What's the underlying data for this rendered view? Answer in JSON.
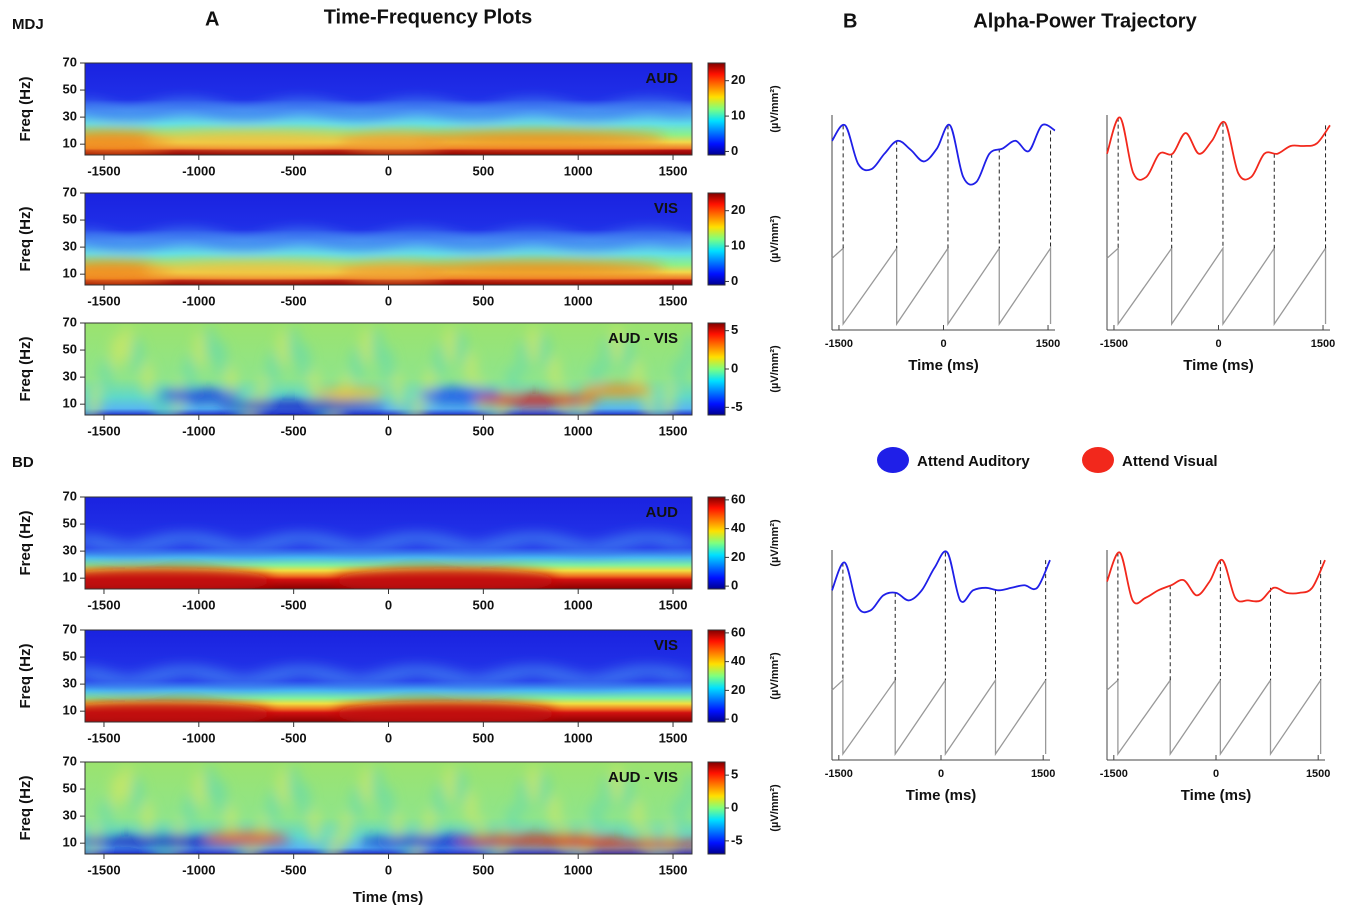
{
  "panel_a": {
    "label": "A",
    "title": "Time-Frequency Plots"
  },
  "panel_b": {
    "label": "B",
    "title": "Alpha-Power Trajectory"
  },
  "heatmap_axes": {
    "y_label": "Freq (Hz)",
    "ylim": [
      2,
      70
    ],
    "yticks": [
      10,
      30,
      50,
      70
    ],
    "xlim": [
      -1600,
      1600
    ],
    "xticks": [
      -1500,
      -1000,
      -500,
      0,
      500,
      1000,
      1500
    ],
    "x_label": "Time (ms)",
    "colorbar_label": "(µV/mm²)"
  },
  "subjects": [
    {
      "name": "MDJ",
      "plots": [
        {
          "label": "AUD",
          "clim": [
            -1,
            25
          ],
          "colorbar_ticks": [
            0,
            10,
            20
          ]
        },
        {
          "label": "VIS",
          "clim": [
            -1,
            25
          ],
          "colorbar_ticks": [
            0,
            10,
            20
          ]
        },
        {
          "label": "AUD - VIS",
          "clim": [
            -6,
            6
          ],
          "colorbar_ticks": [
            -5,
            0,
            5
          ]
        }
      ]
    },
    {
      "name": "BD",
      "plots": [
        {
          "label": "AUD",
          "clim": [
            -2,
            62
          ],
          "colorbar_ticks": [
            0,
            20,
            40,
            60
          ]
        },
        {
          "label": "VIS",
          "clim": [
            -2,
            62
          ],
          "colorbar_ticks": [
            0,
            20,
            40,
            60
          ]
        },
        {
          "label": "AUD - VIS",
          "clim": [
            -7,
            7
          ],
          "colorbar_ticks": [
            -5,
            0,
            5
          ]
        }
      ]
    }
  ],
  "trajectory": {
    "xlim": [
      -1600,
      1600
    ],
    "xticks": [
      -1500,
      0,
      1500
    ],
    "x_label": "Time (ms)",
    "legend": [
      {
        "name": "Attend Auditory",
        "color": "#1f1fe8"
      },
      {
        "name": "Attend Visual",
        "color": "#f2281c"
      }
    ]
  }
}
